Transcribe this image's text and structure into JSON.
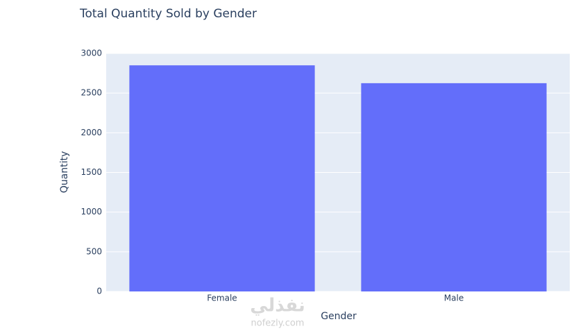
{
  "chart_data": {
    "type": "bar",
    "title": "Total Quantity Sold by Gender",
    "x_label": "Gender",
    "y_label": "Quantity",
    "categories": [
      "Female",
      "Male"
    ],
    "values": [
      2850,
      2625
    ],
    "color": "#636efa",
    "ylim": [
      0,
      3000
    ],
    "yticks": [
      0,
      500,
      1000,
      1500,
      2000,
      2500,
      3000
    ],
    "grid": true,
    "watermark": [
      "نفذلي",
      "nofezly.com"
    ]
  }
}
